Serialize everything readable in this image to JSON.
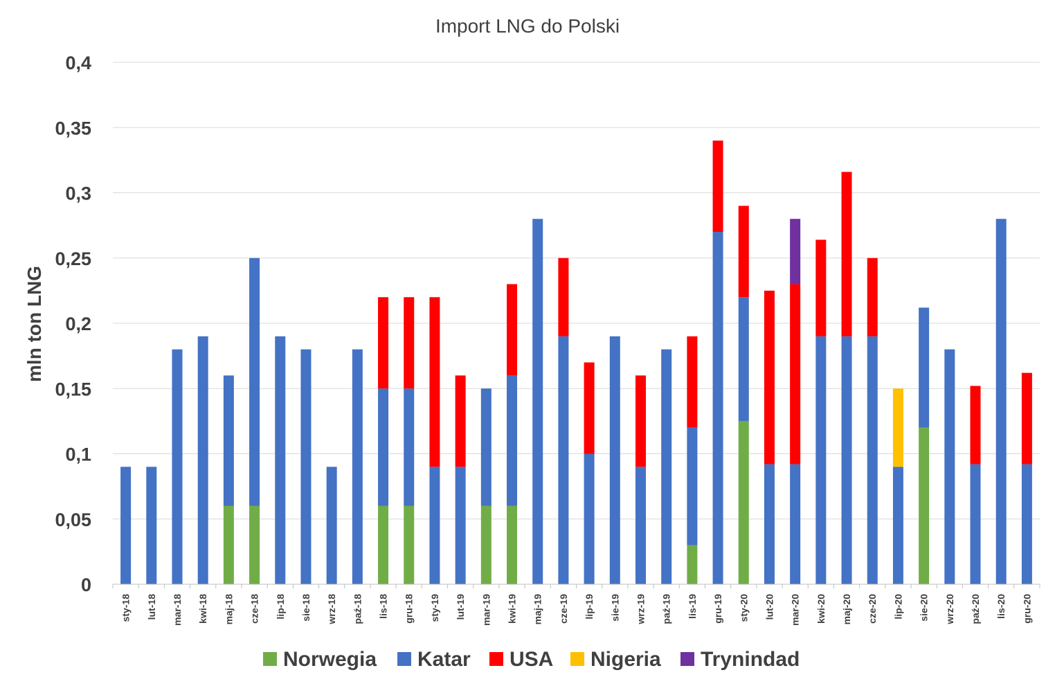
{
  "chart_data": {
    "type": "bar",
    "stacked": true,
    "title": "Import LNG do Polski",
    "xlabel": "",
    "ylabel": "mln ton LNG",
    "ylim": [
      0,
      0.4
    ],
    "yticks": [
      {
        "value": 0,
        "label": "0"
      },
      {
        "value": 0.05,
        "label": "0,05"
      },
      {
        "value": 0.1,
        "label": "0,1"
      },
      {
        "value": 0.15,
        "label": "0,15"
      },
      {
        "value": 0.2,
        "label": "0,2"
      },
      {
        "value": 0.25,
        "label": "0,25"
      },
      {
        "value": 0.3,
        "label": "0,3"
      },
      {
        "value": 0.35,
        "label": "0,35"
      },
      {
        "value": 0.4,
        "label": "0,4"
      }
    ],
    "grid": true,
    "legend_position": "bottom",
    "categories": [
      "sty-18",
      "lut-18",
      "mar-18",
      "kwi-18",
      "maj-18",
      "cze-18",
      "lip-18",
      "sie-18",
      "wrz-18",
      "paź-18",
      "lis-18",
      "gru-18",
      "sty-19",
      "lut-19",
      "mar-19",
      "kwi-19",
      "maj-19",
      "cze-19",
      "lip-19",
      "sie-19",
      "wrz-19",
      "paź-19",
      "lis-19",
      "gru-19",
      "sty-20",
      "lut-20",
      "mar-20",
      "kwi-20",
      "maj-20",
      "cze-20",
      "lip-20",
      "sie-20",
      "wrz-20",
      "paź-20",
      "lis-20",
      "gru-20"
    ],
    "series": [
      {
        "name": "Norwegia",
        "color": "#70ad47",
        "values": [
          0,
          0,
          0,
          0,
          0.06,
          0.06,
          0,
          0,
          0,
          0,
          0.06,
          0.06,
          0,
          0,
          0.06,
          0.06,
          0,
          0,
          0,
          0,
          0,
          0,
          0.03,
          0,
          0.125,
          0,
          0,
          0,
          0,
          0,
          0,
          0.12,
          0,
          0,
          0,
          0
        ]
      },
      {
        "name": "Katar",
        "color": "#4472c4",
        "values": [
          0.09,
          0.09,
          0.18,
          0.19,
          0.1,
          0.19,
          0.19,
          0.18,
          0.09,
          0.18,
          0.09,
          0.09,
          0.09,
          0.09,
          0.09,
          0.1,
          0.28,
          0.19,
          0.1,
          0.19,
          0.09,
          0.18,
          0.09,
          0.27,
          0.095,
          0.092,
          0.092,
          0.19,
          0.19,
          0.19,
          0.09,
          0.092,
          0.18,
          0.092,
          0.28,
          0.092
        ]
      },
      {
        "name": "USA",
        "color": "#ff0000",
        "values": [
          0,
          0,
          0,
          0,
          0,
          0,
          0,
          0,
          0,
          0,
          0.07,
          0.07,
          0.13,
          0.07,
          0,
          0.07,
          0,
          0.06,
          0.07,
          0,
          0.07,
          0,
          0.07,
          0.07,
          0.07,
          0.133,
          0.138,
          0.074,
          0.126,
          0.06,
          0,
          0,
          0,
          0.06,
          0,
          0.07
        ]
      },
      {
        "name": "Nigeria",
        "color": "#ffc000",
        "values": [
          0,
          0,
          0,
          0,
          0,
          0,
          0,
          0,
          0,
          0,
          0,
          0,
          0,
          0,
          0,
          0,
          0,
          0,
          0,
          0,
          0,
          0,
          0,
          0,
          0,
          0,
          0,
          0,
          0,
          0,
          0.06,
          0,
          0,
          0,
          0,
          0
        ]
      },
      {
        "name": "Trynindad",
        "color": "#7030a0",
        "values": [
          0,
          0,
          0,
          0,
          0,
          0,
          0,
          0,
          0,
          0,
          0,
          0,
          0,
          0,
          0,
          0,
          0,
          0,
          0,
          0,
          0,
          0,
          0,
          0,
          0,
          0,
          0.05,
          0,
          0,
          0,
          0,
          0,
          0,
          0,
          0,
          0
        ]
      }
    ]
  }
}
